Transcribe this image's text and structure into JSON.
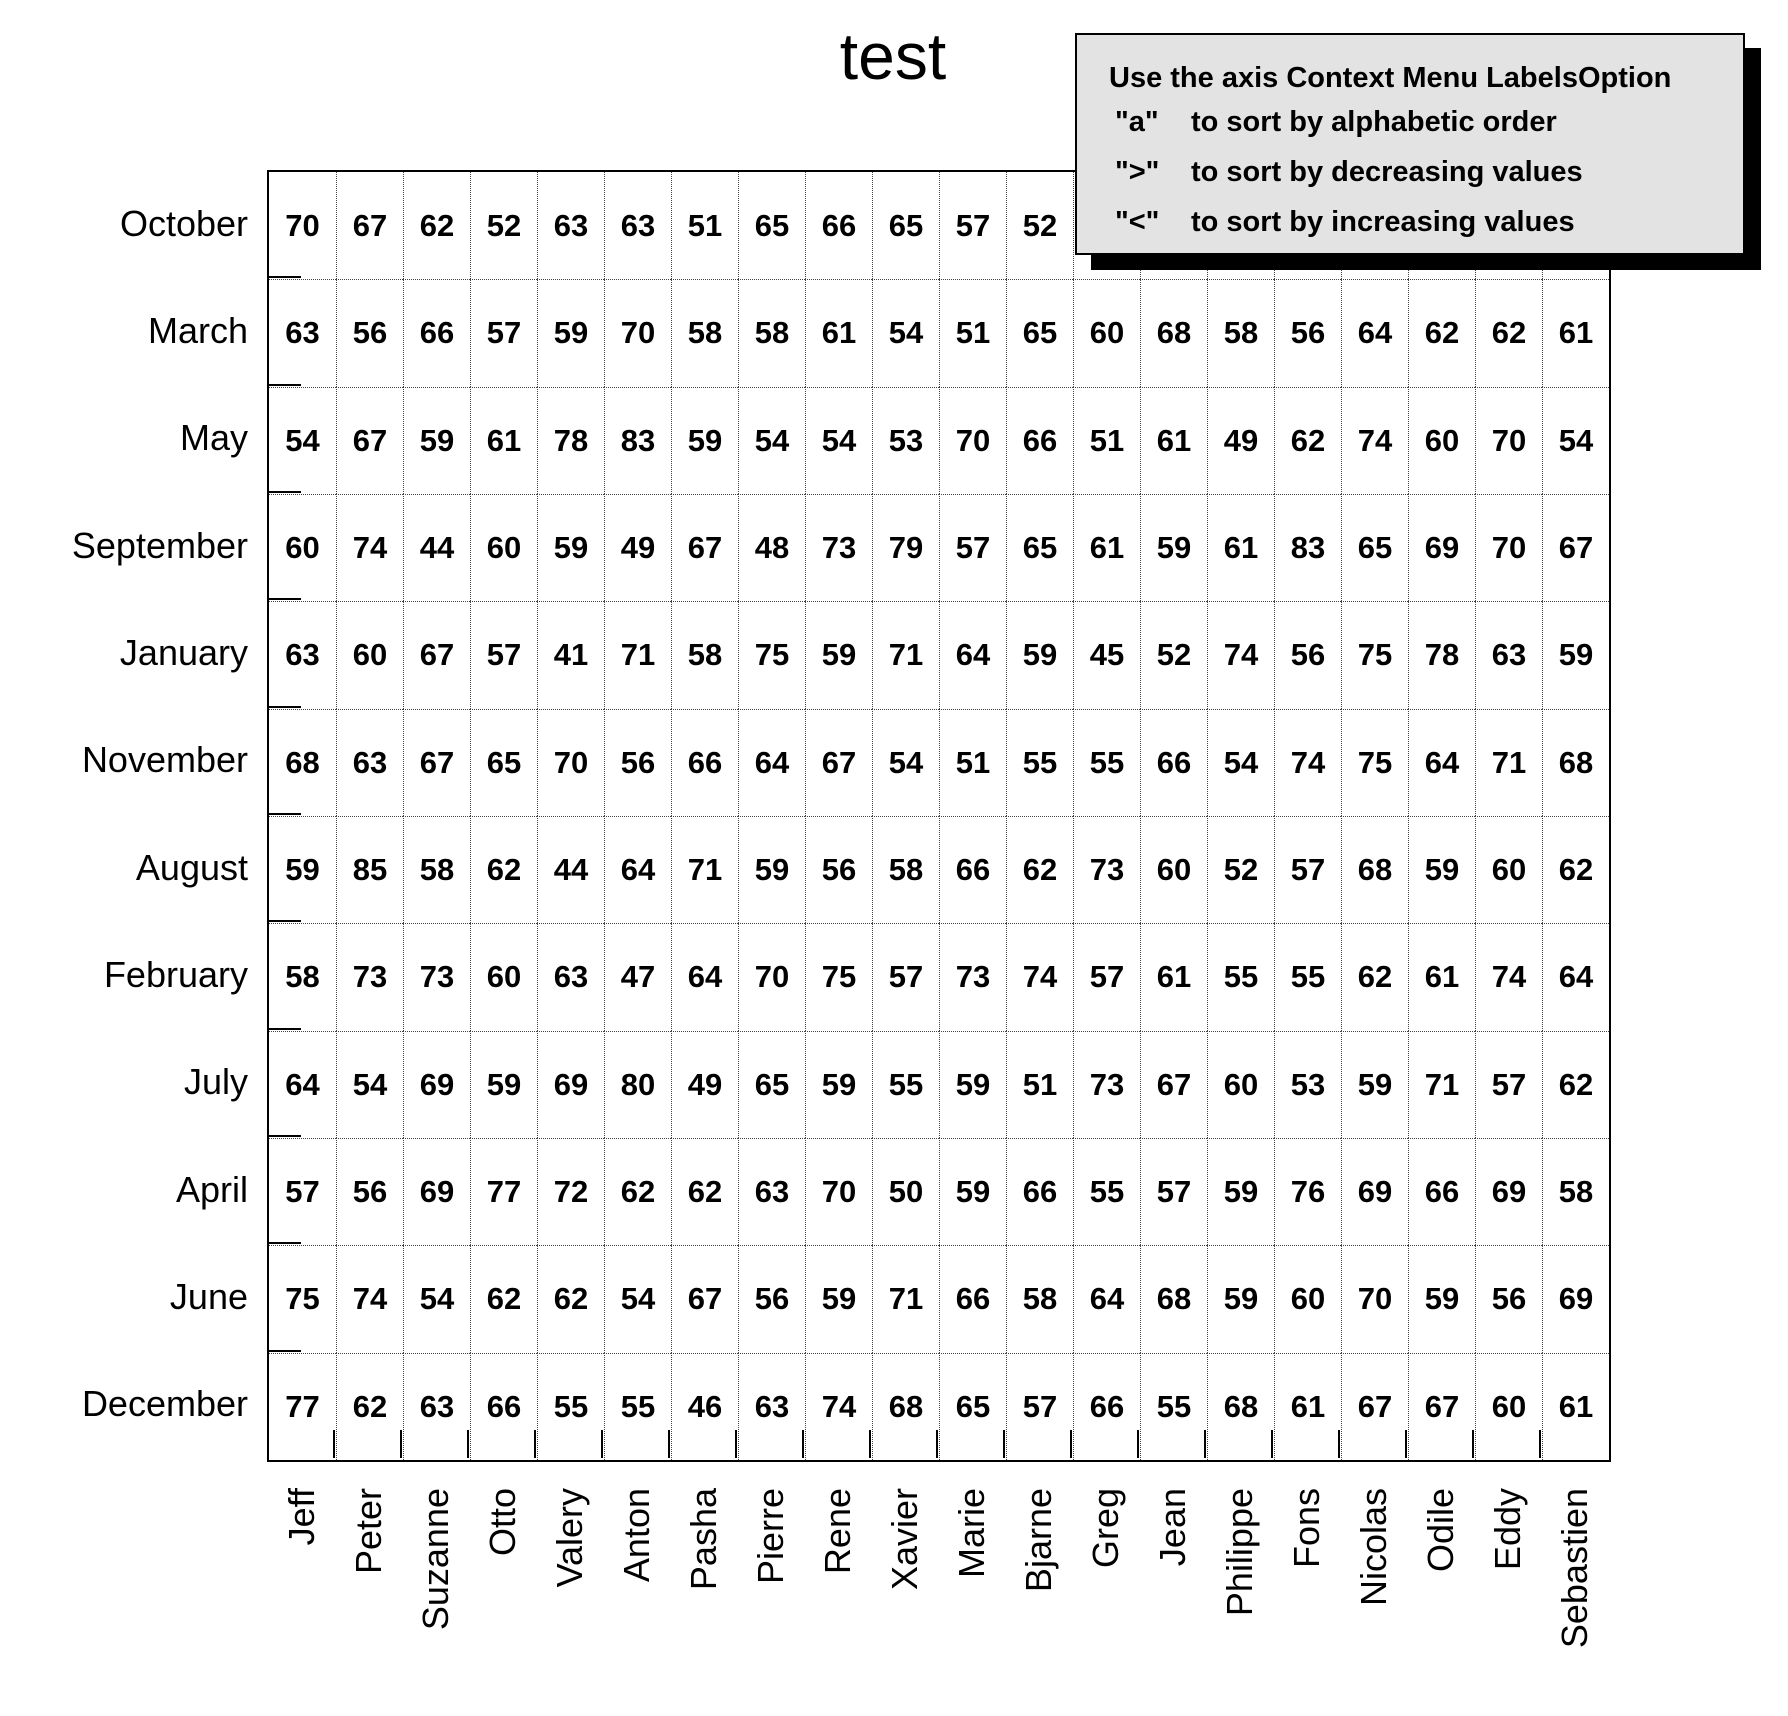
{
  "title": "test",
  "info_box": {
    "title": "Use the axis Context Menu LabelsOption",
    "items": [
      {
        "key": "\"a\"",
        "text": "to sort by alphabetic order"
      },
      {
        "key": "\">\"",
        "text": "to sort by decreasing values"
      },
      {
        "key": "\"<\"",
        "text": "to sort by increasing values"
      }
    ]
  },
  "colors": {
    "background": "#ffffff",
    "text": "#000000",
    "info_box_bg": "#e3e3e3",
    "info_box_shadow": "#000000",
    "grid_line": "#444444"
  },
  "chart_data": {
    "type": "heatmap",
    "title": "test",
    "legend_position": "none",
    "grid": "dotted",
    "columns": [
      "Jeff",
      "Peter",
      "Suzanne",
      "Otto",
      "Valery",
      "Anton",
      "Pasha",
      "Pierre",
      "Rene",
      "Xavier",
      "Marie",
      "Bjarne",
      "Greg",
      "Jean",
      "Philippe",
      "Fons",
      "Nicolas",
      "Odile",
      "Eddy",
      "Sebastien"
    ],
    "rows": [
      "October",
      "March",
      "May",
      "September",
      "January",
      "November",
      "August",
      "February",
      "July",
      "April",
      "June",
      "December"
    ],
    "values": [
      [
        70,
        67,
        62,
        52,
        63,
        63,
        51,
        65,
        66,
        65,
        57,
        52
      ],
      [
        63,
        56,
        66,
        57,
        59,
        70,
        58,
        58,
        61,
        54,
        51,
        65,
        60,
        68,
        58,
        56,
        64,
        62,
        62,
        61
      ],
      [
        54,
        67,
        59,
        61,
        78,
        83,
        59,
        54,
        54,
        53,
        70,
        66,
        51,
        61,
        49,
        62,
        74,
        60,
        70,
        54
      ],
      [
        60,
        74,
        44,
        60,
        59,
        49,
        67,
        48,
        73,
        79,
        57,
        65,
        61,
        59,
        61,
        83,
        65,
        69,
        70,
        67
      ],
      [
        63,
        60,
        67,
        57,
        41,
        71,
        58,
        75,
        59,
        71,
        64,
        59,
        45,
        52,
        74,
        56,
        75,
        78,
        63,
        59
      ],
      [
        68,
        63,
        67,
        65,
        70,
        56,
        66,
        64,
        67,
        54,
        51,
        55,
        55,
        66,
        54,
        74,
        75,
        64,
        71,
        68
      ],
      [
        59,
        85,
        58,
        62,
        44,
        64,
        71,
        59,
        56,
        58,
        66,
        62,
        73,
        60,
        52,
        57,
        68,
        59,
        60,
        62
      ],
      [
        58,
        73,
        73,
        60,
        63,
        47,
        64,
        70,
        75,
        57,
        73,
        74,
        57,
        61,
        55,
        55,
        62,
        61,
        74,
        64
      ],
      [
        64,
        54,
        69,
        59,
        69,
        80,
        49,
        65,
        59,
        55,
        59,
        51,
        73,
        67,
        60,
        53,
        59,
        71,
        57,
        62
      ],
      [
        57,
        56,
        69,
        77,
        72,
        62,
        62,
        63,
        70,
        50,
        59,
        66,
        55,
        57,
        59,
        76,
        69,
        66,
        69,
        58
      ],
      [
        75,
        74,
        54,
        62,
        62,
        54,
        67,
        56,
        59,
        71,
        66,
        58,
        64,
        68,
        59,
        60,
        70,
        59,
        56,
        69
      ],
      [
        77,
        62,
        63,
        66,
        55,
        55,
        46,
        63,
        74,
        68,
        65,
        57,
        66,
        55,
        68,
        61,
        67,
        67,
        60,
        61
      ]
    ],
    "note": "October cells for columns Greg through Sebastien are occluded by the info box overlay"
  }
}
